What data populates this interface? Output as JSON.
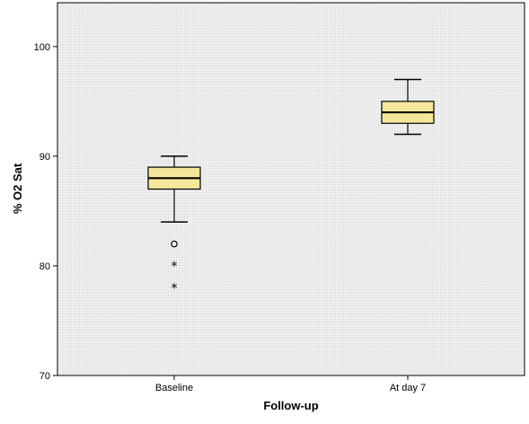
{
  "chart_data": {
    "type": "boxplot",
    "title": "",
    "xlabel": "Follow-up",
    "ylabel": "% O2 Sat",
    "ylim": [
      70,
      104
    ],
    "yticks": [
      70,
      80,
      90,
      100
    ],
    "categories": [
      "Baseline",
      "At day 7"
    ],
    "boxes": [
      {
        "category": "Baseline",
        "whisker_low": 84,
        "q1": 87,
        "median": 88,
        "q3": 89,
        "whisker_high": 90,
        "outliers": [
          82
        ],
        "extremes": [
          80,
          78
        ]
      },
      {
        "category": "At day 7",
        "whisker_low": 92,
        "q1": 93,
        "median": 94,
        "q3": 95,
        "whisker_high": 97,
        "outliers": [],
        "extremes": []
      }
    ],
    "box_color": "#f5e79a",
    "background_color": "#eeeeee",
    "grid": false,
    "legend": "none"
  }
}
